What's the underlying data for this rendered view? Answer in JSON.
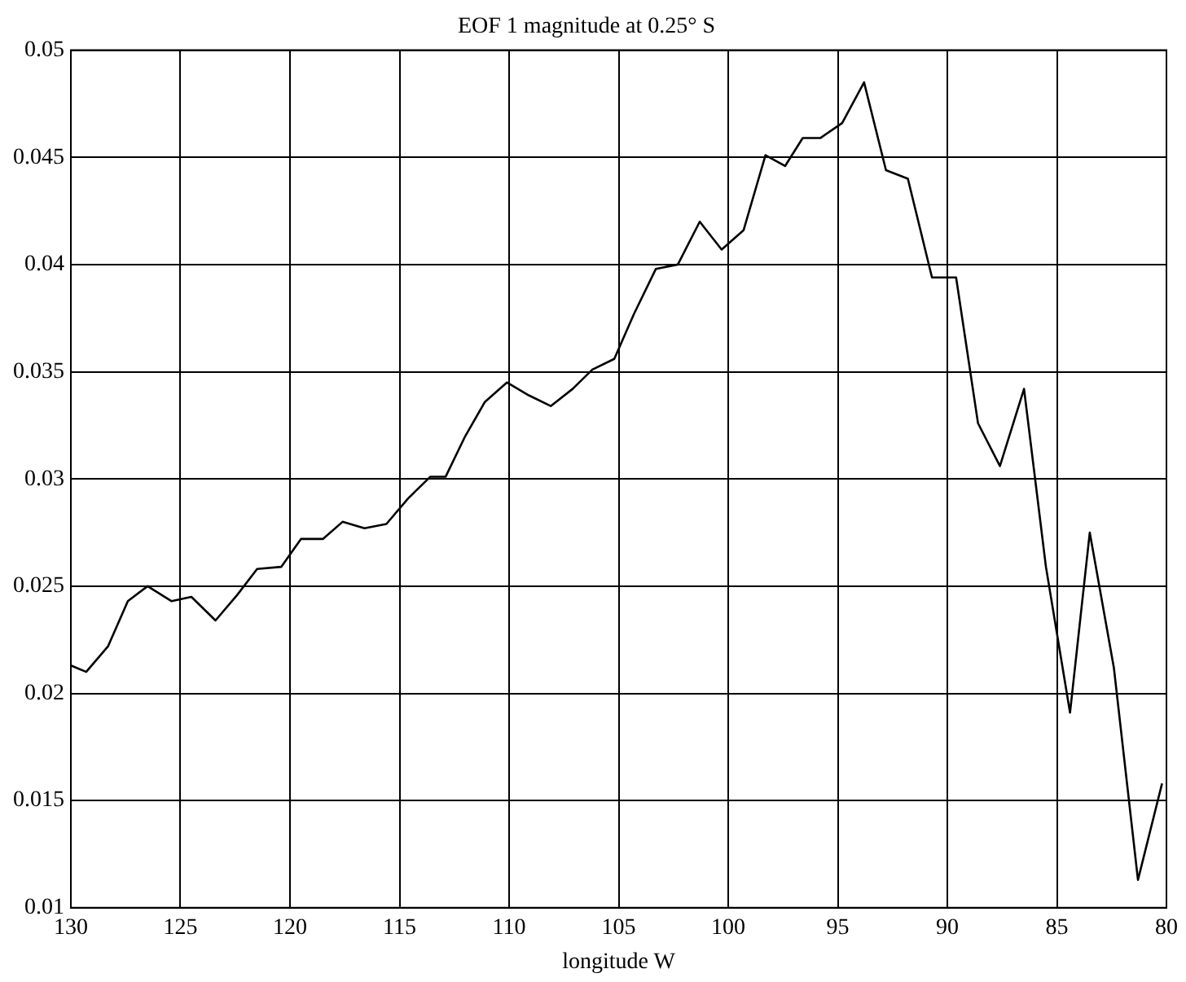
{
  "chart_data": {
    "type": "line",
    "title": "EOF 1 magnitude at 0.25° S",
    "xlabel": "longitude W",
    "xlim": [
      130,
      80
    ],
    "xticks": [
      130,
      125,
      120,
      115,
      110,
      105,
      100,
      95,
      90,
      85,
      80
    ],
    "ylim": [
      0.01,
      0.05
    ],
    "yticks": [
      0.01,
      0.015,
      0.02,
      0.025,
      0.03,
      0.035,
      0.04,
      0.045,
      0.05
    ],
    "grid": true,
    "legend": false,
    "marker": "none",
    "line_style": "solid",
    "series": [
      {
        "color": "#000000",
        "x": [
          130,
          129.3,
          128.3,
          127.4,
          126.5,
          125.4,
          124.5,
          123.4,
          122.4,
          121.5,
          120.4,
          119.5,
          118.5,
          117.6,
          116.6,
          115.6,
          114.6,
          113.6,
          112.9,
          112.0,
          111.1,
          110.1,
          109.1,
          108.1,
          107.1,
          106.2,
          105.2,
          104.3,
          103.3,
          102.3,
          101.3,
          100.3,
          99.3,
          98.3,
          97.4,
          96.6,
          95.8,
          94.8,
          93.8,
          92.8,
          91.8,
          90.7,
          89.6,
          88.6,
          87.6,
          86.5,
          85.5,
          84.4,
          83.5,
          82.4,
          81.3,
          80.2
        ],
        "values": [
          0.0213,
          0.021,
          0.0222,
          0.0243,
          0.025,
          0.0243,
          0.0245,
          0.0234,
          0.0246,
          0.0258,
          0.0259,
          0.0272,
          0.0272,
          0.028,
          0.0277,
          0.0279,
          0.0291,
          0.0301,
          0.0301,
          0.032,
          0.0336,
          0.0345,
          0.0339,
          0.0334,
          0.0342,
          0.0351,
          0.0356,
          0.0377,
          0.0398,
          0.04,
          0.042,
          0.0407,
          0.0416,
          0.0451,
          0.0446,
          0.0459,
          0.0459,
          0.0466,
          0.0485,
          0.0444,
          0.044,
          0.0394,
          0.0394,
          0.0326,
          0.0306,
          0.0342,
          0.0259,
          0.0191,
          0.0275,
          0.0212,
          0.0113,
          0.0158
        ]
      }
    ]
  }
}
